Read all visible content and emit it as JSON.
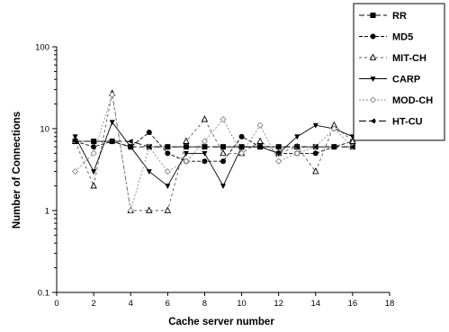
{
  "chart_data": {
    "type": "line",
    "title": "",
    "xlabel": "Cache server number",
    "ylabel": "Number of Connections",
    "xlim": [
      0,
      18
    ],
    "ylim": [
      0.1,
      100
    ],
    "yscale": "log",
    "xticks": [
      "0",
      "2",
      "4",
      "6",
      "8",
      "10",
      "12",
      "14",
      "16",
      "18"
    ],
    "yticks": [
      "0.1",
      "1",
      "10",
      "100"
    ],
    "x": [
      1,
      2,
      3,
      4,
      5,
      6,
      7,
      8,
      9,
      10,
      11,
      12,
      13,
      14,
      15,
      16
    ],
    "grid": false,
    "legend_position": "top-right",
    "series": [
      {
        "name": "RR",
        "marker": "square",
        "dash": "6,3",
        "values": [
          7,
          7,
          7,
          6,
          6,
          6,
          6,
          6,
          6,
          6,
          6,
          6,
          6,
          6,
          6,
          6
        ]
      },
      {
        "name": "MD5",
        "marker": "circle",
        "dash": "4,2",
        "values": [
          7,
          6,
          7,
          6,
          9,
          5,
          4,
          4,
          4,
          8,
          6,
          5,
          5,
          5,
          6,
          7
        ]
      },
      {
        "name": "MIT-CH",
        "marker": "triangle-up-open",
        "dash": "3,3",
        "values": [
          7,
          2,
          27,
          1,
          1,
          1,
          7,
          13,
          5,
          5,
          7,
          5,
          6,
          3,
          11,
          7
        ]
      },
      {
        "name": "CARP",
        "marker": "triangle-down",
        "dash": "",
        "values": [
          8,
          3,
          12,
          6,
          3,
          2,
          5,
          5,
          2,
          6,
          6,
          5,
          8,
          11,
          10,
          8
        ]
      },
      {
        "name": "MOD-CH",
        "marker": "diamond-open",
        "dash": "2,2",
        "values": [
          3,
          5,
          26,
          1,
          6,
          3,
          4,
          7,
          13,
          5,
          11,
          4,
          5,
          6,
          10,
          6
        ]
      },
      {
        "name": "HT-CU",
        "marker": "triangle-left",
        "dash": "8,3",
        "values": [
          7,
          7,
          7,
          7,
          6,
          6,
          6,
          6,
          6,
          6,
          6,
          6,
          6,
          6,
          6,
          6
        ]
      }
    ]
  }
}
